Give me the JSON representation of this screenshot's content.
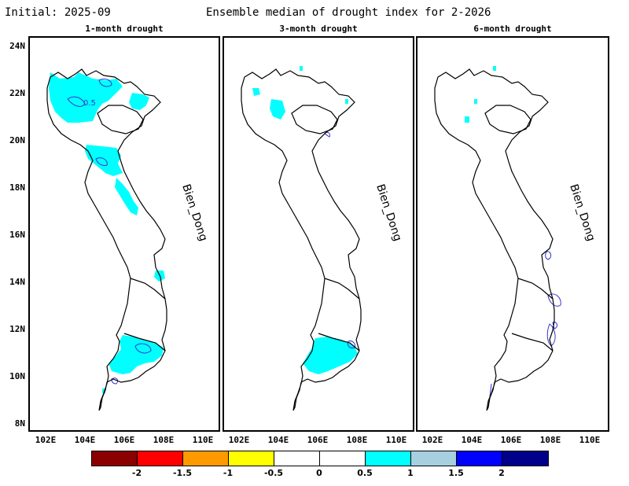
{
  "header": {
    "initial": "Initial: 2025-09",
    "title": "Ensemble median of drought index for 2-2026"
  },
  "panels": [
    {
      "title": "1-month drought",
      "sea_label": "Bien_Dong",
      "contour_label": "0.5"
    },
    {
      "title": "3-month drought",
      "sea_label": "Bien_Dong"
    },
    {
      "title": "6-month drought",
      "sea_label": "Bien_Dong"
    }
  ],
  "y_ticks": [
    "24N",
    "22N",
    "20N",
    "18N",
    "16N",
    "14N",
    "12N",
    "10N",
    "8N"
  ],
  "x_ticks": [
    "102E",
    "104E",
    "106E",
    "108E",
    "110E"
  ],
  "colorbar": {
    "labels": [
      "-2",
      "-1.5",
      "-1",
      "-0.5",
      "0",
      "0.5",
      "1",
      "1.5",
      "2"
    ],
    "colors": [
      "#8b0000",
      "#ff0000",
      "#ff9900",
      "#ffff00",
      "#ffffff",
      "#ffffff",
      "#00ffff",
      "#a6cfe0",
      "#0000ff",
      "#00008b"
    ]
  },
  "colors": {
    "wet": "#00ffff",
    "wet_contour": "#3333cc",
    "outline": "#000000"
  }
}
